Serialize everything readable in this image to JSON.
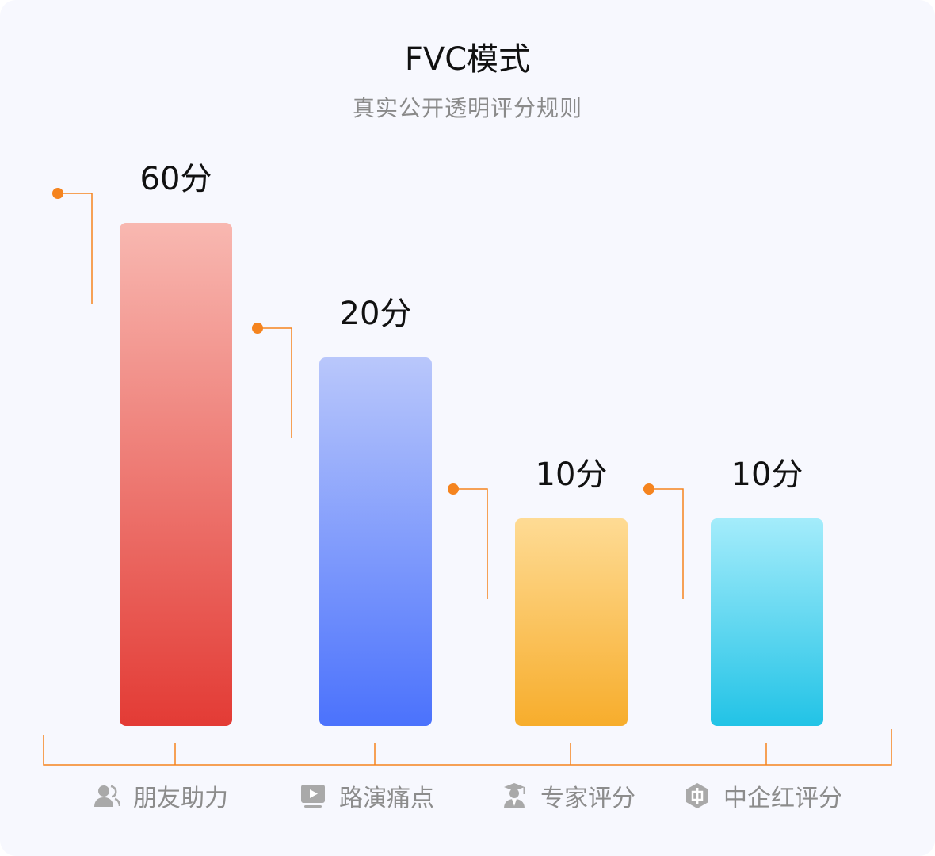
{
  "title": "FVC模式",
  "subtitle": "真实公开透明评分规则",
  "colors": {
    "accent_orange": "#f5841f",
    "label_text": "#8c8c8c",
    "value_text": "#111111",
    "background": "#f7f8fe"
  },
  "chart_data": {
    "type": "bar",
    "categories": [
      "朋友助力",
      "路演痛点",
      "专家评分",
      "中企红评分"
    ],
    "values": [
      60,
      20,
      10,
      10
    ],
    "value_labels": [
      "60分",
      "20分",
      "10分",
      "10分"
    ],
    "icons": [
      "user-group-icon",
      "play-video-icon",
      "graduate-icon",
      "hexagon-logo-icon"
    ],
    "bar_colors": [
      {
        "from": "#f8b8b1",
        "to": "#e33b35"
      },
      {
        "from": "#b9c7fb",
        "to": "#4b72fc"
      },
      {
        "from": "#fedb94",
        "to": "#f7ad2c"
      },
      {
        "from": "#a4ecfb",
        "to": "#22c3e6"
      }
    ],
    "title": "FVC模式",
    "subtitle": "真实公开透明评分规则",
    "xlabel": "",
    "ylabel": "",
    "grid": false,
    "legend": "none"
  }
}
